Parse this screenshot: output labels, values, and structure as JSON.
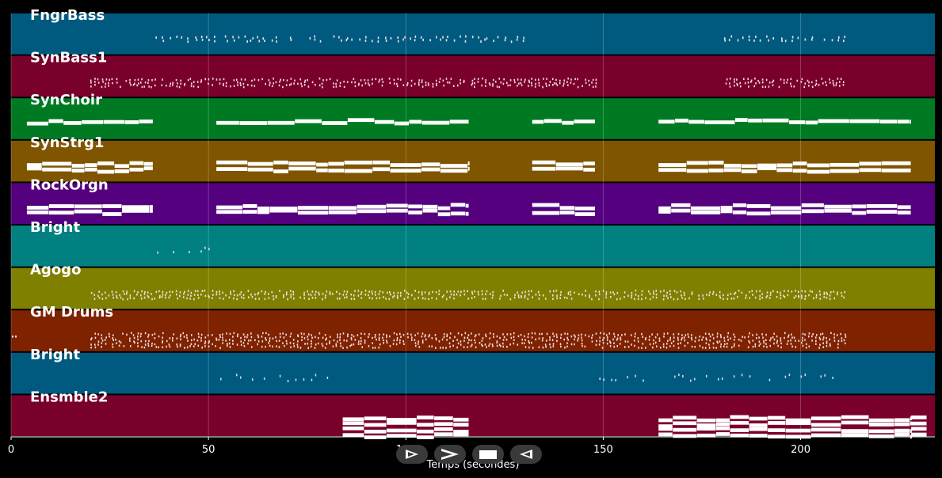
{
  "chart_data": {
    "type": "piano-roll",
    "xlabel": "Temps (secondes)",
    "xlim": [
      0,
      234
    ],
    "xticks": [
      0,
      50,
      100,
      150,
      200
    ],
    "grid": true,
    "tracks": [
      {
        "name": "FngrBass",
        "color": "#005a80",
        "style": "dense-short",
        "lanes": 2,
        "segments": [
          [
            36.5,
            131.5
          ],
          [
            180,
            211.5
          ]
        ]
      },
      {
        "name": "SynBass1",
        "color": "#7a002c",
        "style": "dense-scatter",
        "lanes": 3,
        "segments": [
          [
            20,
            148
          ],
          [
            180,
            211.5
          ]
        ]
      },
      {
        "name": "SynChoir",
        "color": "#007a22",
        "style": "long",
        "lanes": 1,
        "segments": [
          [
            4,
            36
          ],
          [
            52,
            116
          ],
          [
            132,
            148
          ],
          [
            164,
            228
          ]
        ]
      },
      {
        "name": "SynStrg1",
        "color": "#7f5500",
        "style": "long",
        "lanes": 2,
        "segments": [
          [
            4,
            36
          ],
          [
            52,
            116
          ],
          [
            132,
            148
          ],
          [
            164,
            228
          ]
        ]
      },
      {
        "name": "RockOrgn",
        "color": "#55007f",
        "style": "long",
        "lanes": 2,
        "segments": [
          [
            4,
            36
          ],
          [
            52,
            116
          ],
          [
            132,
            148
          ],
          [
            164,
            228
          ]
        ]
      },
      {
        "name": "Bright",
        "color": "#008080",
        "style": "sparse",
        "lanes": 1,
        "notes": [
          37,
          41,
          45,
          48,
          49,
          50
        ]
      },
      {
        "name": "Agogo",
        "color": "#808000",
        "style": "dense-scatter",
        "lanes": 3,
        "segments": [
          [
            20,
            211.5
          ]
        ]
      },
      {
        "name": "GM Drums",
        "color": "#7f2200",
        "style": "dense-multi",
        "lanes": 5,
        "segments": [
          [
            20,
            211.5
          ]
        ],
        "extra": [
          0.2,
          1
        ]
      },
      {
        "name": "Bright",
        "color": "#005a80",
        "style": "sparse",
        "lanes": 3,
        "notes": [
          53,
          57,
          58,
          61,
          64,
          68,
          70,
          72,
          74,
          76,
          77,
          80,
          149,
          150,
          152,
          153,
          156,
          158,
          160,
          168,
          169,
          170,
          172,
          173,
          176,
          179,
          180,
          183,
          185,
          187,
          192,
          196,
          197,
          200,
          201,
          205,
          206,
          208
        ]
      },
      {
        "name": "Ensmble2",
        "color": "#7a002c",
        "style": "long",
        "lanes": 4,
        "segments": [
          [
            84,
            116
          ],
          [
            164,
            228
          ],
          [
            228,
            232
          ]
        ]
      }
    ]
  },
  "controls": {
    "play": "play-icon",
    "forward": "forward-icon",
    "stop": "stop-icon",
    "rewind": "rewind-icon"
  }
}
